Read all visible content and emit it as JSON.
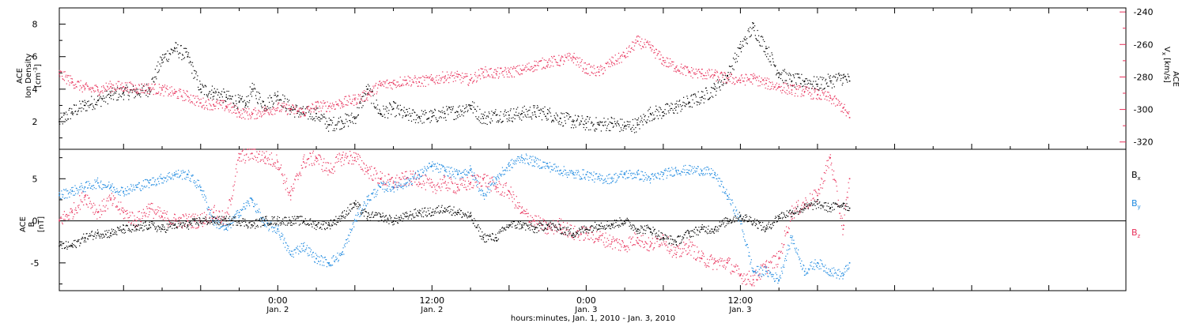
{
  "chart_data": [
    {
      "type": "scatter",
      "panel": "top",
      "ylabel_left": [
        "ACE",
        "Ion Density",
        "[cm",
        "-3",
        "]"
      ],
      "ylabel_right": [
        "ACE",
        "V",
        "x",
        "[km/s]"
      ],
      "ylim_left": [
        0.3,
        9.0
      ],
      "yticks_left": [
        2,
        4,
        6,
        8
      ],
      "ylim_right": [
        -324.5,
        -237.5
      ],
      "yticks_right": [
        -320,
        -300,
        -280,
        -260,
        -240
      ],
      "grid": false,
      "series": [
        {
          "name": "Ion Density",
          "axis": "left",
          "color": "#000000",
          "x": [
            -17,
            -16,
            -15,
            -14,
            -13,
            -12,
            -11,
            -10,
            -9,
            -8,
            -7,
            -6,
            -5,
            -4,
            -3,
            -2.5,
            -2,
            -1,
            0,
            1,
            2,
            3,
            4,
            5,
            6,
            7,
            8,
            9,
            10,
            11,
            12,
            13,
            14,
            15,
            16,
            17,
            18,
            19,
            20,
            21,
            22,
            23,
            24,
            25,
            26,
            27,
            28,
            29,
            30,
            31,
            32,
            33,
            34,
            35,
            36,
            37,
            38,
            39,
            40,
            41,
            42,
            43,
            44,
            44.5
          ],
          "y": [
            2.0,
            2.6,
            3.0,
            3.3,
            3.6,
            3.8,
            3.8,
            4.0,
            5.8,
            6.5,
            6.0,
            4.0,
            3.8,
            3.5,
            3.2,
            3.0,
            4.0,
            3.0,
            3.6,
            2.8,
            2.5,
            2.5,
            1.8,
            2.0,
            2.2,
            4.0,
            2.5,
            2.8,
            2.4,
            2.3,
            2.3,
            2.5,
            2.6,
            3.0,
            2.2,
            2.4,
            2.4,
            2.5,
            2.6,
            2.5,
            2.2,
            2.0,
            1.9,
            1.8,
            1.9,
            1.7,
            1.8,
            2.5,
            2.6,
            2.9,
            3.2,
            3.5,
            4.0,
            4.8,
            6.5,
            7.8,
            6.5,
            5.0,
            4.5,
            4.5,
            4.3,
            4.5,
            4.7,
            4.5
          ]
        },
        {
          "name": "Vx",
          "axis": "right",
          "color": "#e8305a",
          "x": [
            -17,
            -16,
            -15,
            -14,
            -13,
            -12,
            -11,
            -10,
            -9,
            -8,
            -7,
            -6,
            -5,
            -4,
            -3,
            -2,
            -1,
            0,
            1,
            2,
            3,
            4,
            5,
            6,
            7,
            8,
            9,
            10,
            11,
            12,
            13,
            14,
            15,
            16,
            17,
            18,
            19,
            20,
            21,
            22,
            23,
            24,
            25,
            26,
            27,
            28,
            29,
            30,
            31,
            32,
            33,
            34,
            35,
            36,
            37,
            38,
            39,
            40,
            41,
            42,
            43,
            44,
            44.5
          ],
          "y": [
            -278,
            -283,
            -287,
            -288,
            -286,
            -286,
            -287,
            -287,
            -288,
            -290,
            -292,
            -296,
            -297,
            -298,
            -302,
            -303,
            -301,
            -299,
            -300,
            -302,
            -298,
            -298,
            -296,
            -294,
            -291,
            -285,
            -284,
            -282,
            -283,
            -282,
            -280,
            -280,
            -282,
            -277,
            -278,
            -277,
            -276,
            -273,
            -271,
            -270,
            -268,
            -275,
            -277,
            -271,
            -267,
            -258,
            -262,
            -270,
            -274,
            -277,
            -278,
            -279,
            -281,
            -282,
            -281,
            -284,
            -286,
            -288,
            -289,
            -291,
            -293,
            -299,
            -305
          ]
        }
      ]
    },
    {
      "type": "scatter",
      "panel": "bottom",
      "ylabel_left": [
        "ACE",
        "B",
        "[nT]"
      ],
      "ylim": [
        -8.3,
        8.5
      ],
      "yticks": [
        -5,
        0,
        5
      ],
      "zero_line": true,
      "grid": false,
      "xlabel": "hours:minutes, Jan.  1, 2010 - Jan.  3, 2010",
      "xlim": [
        -17.0,
        66.0
      ],
      "xticks": [
        {
          "x": 0,
          "label": "0:00",
          "sub": "Jan. 2"
        },
        {
          "x": 12,
          "label": "12:00",
          "sub": "Jan. 2"
        },
        {
          "x": 24,
          "label": "0:00",
          "sub": "Jan. 3"
        },
        {
          "x": 36,
          "label": "12:00",
          "sub": "Jan. 3"
        }
      ],
      "legend": "right",
      "series": [
        {
          "name": "Bx",
          "label": "B",
          "label_sub": "x",
          "color": "#000000",
          "x": [
            -17,
            -16,
            -15,
            -14,
            -13,
            -12,
            -11,
            -10,
            -9,
            -8,
            -7,
            -6,
            -5,
            -4,
            -3,
            -2,
            -1,
            0,
            1,
            2,
            3,
            4,
            5,
            6,
            7,
            8,
            9,
            10,
            11,
            12,
            13,
            14,
            15,
            16,
            17,
            18,
            19,
            20,
            21,
            22,
            23,
            24,
            25,
            26,
            27,
            28,
            29,
            30,
            31,
            32,
            33,
            34,
            35,
            36,
            37,
            38,
            39,
            40,
            41,
            42,
            43,
            44,
            44.5
          ],
          "y": [
            -3,
            -3,
            -2,
            -1.5,
            -1.5,
            -1,
            -1,
            -0.5,
            -1,
            -0.5,
            -0.5,
            0,
            0,
            0,
            0,
            -0.5,
            0,
            0,
            0,
            0,
            -0.5,
            -0.5,
            0.5,
            2,
            0.5,
            0.5,
            0,
            0.5,
            1,
            1,
            1.5,
            1,
            0.5,
            -2,
            -2,
            -0.5,
            -0.5,
            -1,
            -0.5,
            -1,
            -1.5,
            -1,
            -0.5,
            -0.5,
            0,
            -1,
            -1,
            -2,
            -2.5,
            -1.5,
            -1,
            -1,
            0,
            0.5,
            0,
            -1,
            0.5,
            1,
            1.5,
            2,
            1.5,
            2,
            1.5
          ]
        },
        {
          "name": "By",
          "label": "B",
          "label_sub": "y",
          "color": "#1f8ae0",
          "x": [
            -17,
            -16,
            -15,
            -14,
            -13,
            -12,
            -11,
            -10,
            -9,
            -8,
            -7,
            -6,
            -5,
            -4,
            -3,
            -2,
            -1,
            0,
            1,
            2,
            3,
            4,
            5,
            6,
            7,
            8,
            9,
            10,
            11,
            12,
            13,
            14,
            15,
            16,
            17,
            18,
            19,
            20,
            21,
            22,
            23,
            24,
            25,
            26,
            27,
            28,
            29,
            30,
            31,
            32,
            33,
            34,
            35,
            36,
            37,
            38,
            39,
            40,
            41,
            42,
            43,
            44,
            44.5
          ],
          "y": [
            3,
            3.5,
            4,
            4.5,
            4,
            3.5,
            4,
            4.5,
            5,
            5.5,
            5.5,
            4,
            0,
            -1,
            1,
            2.5,
            -0.5,
            -1,
            -4,
            -3,
            -4.5,
            -5,
            -4,
            0,
            2.5,
            4,
            4,
            4.5,
            5.5,
            6.5,
            6,
            5.5,
            6,
            3,
            5,
            6.5,
            7.5,
            7,
            6.5,
            6,
            5.5,
            5.5,
            5,
            5,
            5.5,
            5.5,
            5,
            5.5,
            6,
            6,
            6,
            5.5,
            3,
            0,
            -6,
            -6,
            -7,
            -2,
            -6,
            -5,
            -6,
            -6.5,
            -5
          ]
        },
        {
          "name": "Bz",
          "label": "B",
          "label_sub": "z",
          "color": "#e8305a",
          "x": [
            -17,
            -16,
            -15,
            -14,
            -13,
            -12,
            -11,
            -10,
            -9,
            -8,
            -7,
            -6,
            -5,
            -4,
            -3,
            -2,
            -1,
            0,
            1,
            2,
            3,
            4,
            5,
            6,
            7,
            8,
            9,
            10,
            11,
            12,
            13,
            14,
            15,
            16,
            17,
            18,
            19,
            20,
            21,
            22,
            23,
            24,
            25,
            26,
            27,
            28,
            29,
            30,
            31,
            32,
            33,
            34,
            35,
            36,
            37,
            38,
            39,
            40,
            41,
            42,
            43,
            44,
            44.5
          ],
          "y": [
            0,
            1,
            3,
            1,
            2.5,
            1,
            0,
            1.5,
            0.5,
            0,
            0,
            0,
            1,
            0,
            7.5,
            8,
            7.5,
            7,
            3,
            7,
            7.5,
            6,
            7.5,
            7.5,
            6,
            5,
            4.5,
            5,
            5,
            4,
            4.5,
            4,
            4.5,
            5,
            4,
            3.5,
            1,
            0,
            -1,
            -0.5,
            -1.5,
            -1.5,
            -2,
            -2.5,
            -3,
            -2,
            -3,
            -2,
            -4,
            -3,
            -4.5,
            -5,
            -5,
            -6.5,
            -7,
            -5.5,
            -4.5,
            1,
            2,
            3,
            7.5,
            -1,
            5
          ]
        }
      ]
    }
  ]
}
